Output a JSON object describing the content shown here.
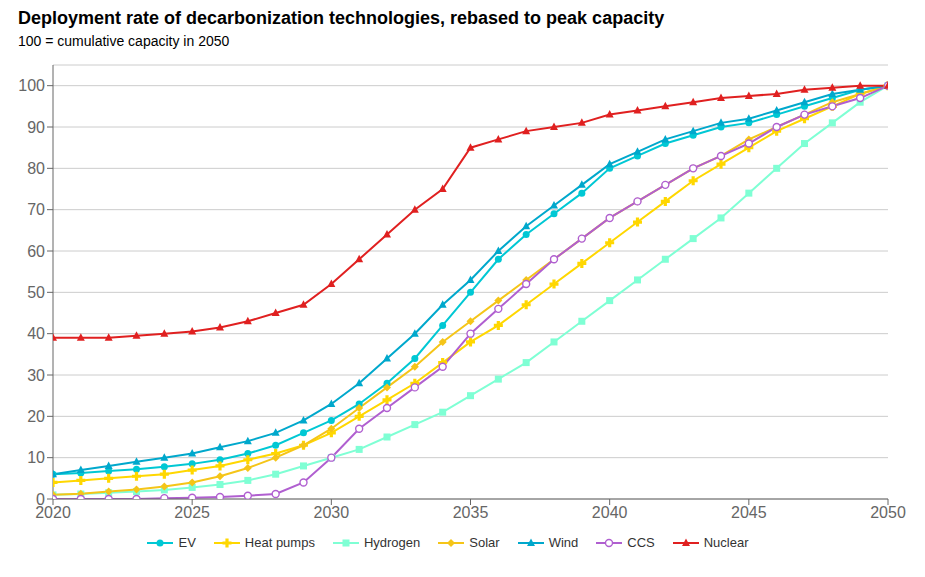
{
  "chart_data": {
    "type": "line",
    "title": "Deployment rate of decarbonization technologies, rebased to peak capacity",
    "subtitle": "100 = cumulative capacity in 2050",
    "x": [
      2020,
      2021,
      2022,
      2023,
      2024,
      2025,
      2026,
      2027,
      2028,
      2029,
      2030,
      2031,
      2032,
      2033,
      2034,
      2035,
      2036,
      2037,
      2038,
      2039,
      2040,
      2041,
      2042,
      2043,
      2044,
      2045,
      2046,
      2047,
      2048,
      2049,
      2050
    ],
    "series": [
      {
        "name": "EV",
        "color": "#00c8d4",
        "marker": "circle",
        "values": [
          6,
          6.3,
          6.8,
          7.2,
          7.8,
          8.5,
          9.5,
          11,
          13,
          16,
          19,
          23,
          28,
          34,
          42,
          50,
          58,
          64,
          69,
          74,
          80,
          83,
          86,
          88,
          90,
          91,
          93,
          95,
          97,
          99,
          100
        ]
      },
      {
        "name": "Heat pumps",
        "color": "#ffd700",
        "marker": "plus",
        "values": [
          4,
          4.5,
          5,
          5.5,
          6,
          7,
          8,
          9.5,
          11,
          13,
          16,
          20,
          24,
          28,
          33,
          38,
          42,
          47,
          52,
          57,
          62,
          67,
          72,
          77,
          81,
          85,
          89,
          92,
          95,
          98,
          100
        ]
      },
      {
        "name": "Hydrogen",
        "color": "#7fffd4",
        "marker": "square",
        "values": [
          1,
          1.2,
          1.5,
          1.8,
          2.2,
          2.8,
          3.5,
          4.5,
          6,
          8,
          10,
          12,
          15,
          18,
          21,
          25,
          29,
          33,
          38,
          43,
          48,
          53,
          58,
          63,
          68,
          74,
          80,
          86,
          91,
          96,
          100
        ]
      },
      {
        "name": "Solar",
        "color": "#f5c518",
        "marker": "diamond",
        "values": [
          1,
          1.3,
          1.8,
          2.3,
          3,
          4,
          5.5,
          7.5,
          10,
          13,
          17,
          22,
          27,
          32,
          38,
          43,
          48,
          53,
          58,
          63,
          68,
          72,
          76,
          80,
          83,
          87,
          90,
          93,
          96,
          98,
          100
        ]
      },
      {
        "name": "Wind",
        "color": "#00a8cc",
        "marker": "triangle",
        "values": [
          6,
          7,
          8,
          9,
          10,
          11,
          12.5,
          14,
          16,
          19,
          23,
          28,
          34,
          40,
          47,
          53,
          60,
          66,
          71,
          76,
          81,
          84,
          87,
          89,
          91,
          92,
          94,
          96,
          98,
          99,
          100
        ]
      },
      {
        "name": "CCS",
        "color": "#b05fd0",
        "marker": "open_circle",
        "values": [
          0,
          0,
          0,
          0,
          0.2,
          0.3,
          0.5,
          0.8,
          1.2,
          4,
          10,
          17,
          22,
          27,
          32,
          40,
          46,
          52,
          58,
          63,
          68,
          72,
          76,
          80,
          83,
          86,
          90,
          93,
          95,
          97,
          100
        ]
      },
      {
        "name": "Nuclear",
        "color": "#e02020",
        "marker": "triangle",
        "values": [
          39,
          39,
          39,
          39.5,
          40,
          40.5,
          41.5,
          43,
          45,
          47,
          52,
          58,
          64,
          70,
          75,
          85,
          87,
          89,
          90,
          91,
          93,
          94,
          95,
          96,
          97,
          97.5,
          98,
          99,
          99.5,
          100,
          100
        ]
      }
    ],
    "xlim": [
      2020,
      2050
    ],
    "xticks": [
      2020,
      2025,
      2030,
      2035,
      2040,
      2045,
      2050
    ],
    "ylim": [
      0,
      105
    ],
    "yticks": [
      0,
      10,
      20,
      30,
      40,
      50,
      60,
      70,
      80,
      90,
      100
    ],
    "grid": true,
    "legend": "bottom"
  }
}
